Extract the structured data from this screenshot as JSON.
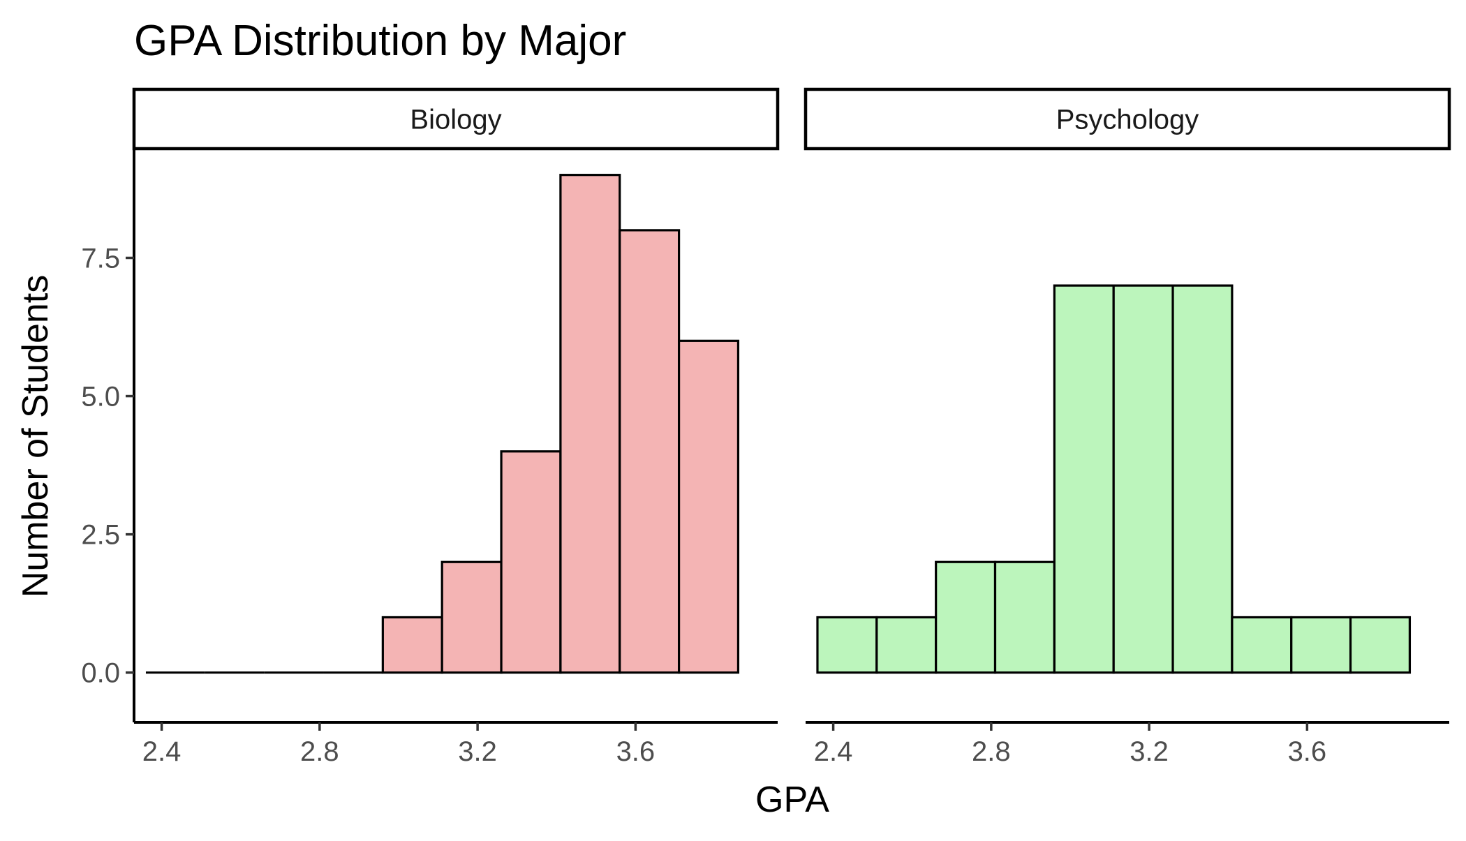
{
  "chart_data": {
    "type": "bar",
    "title": "GPA Distribution by Major",
    "xlabel": "GPA",
    "ylabel": "Number of Students",
    "xlim": [
      2.33,
      3.96
    ],
    "ylim": [
      -0.9,
      9.45
    ],
    "x_ticks": [
      {
        "value": 2.4,
        "label": "2.4"
      },
      {
        "value": 2.8,
        "label": "2.8"
      },
      {
        "value": 3.2,
        "label": "3.2"
      },
      {
        "value": 3.6,
        "label": "3.6"
      }
    ],
    "y_ticks": [
      {
        "value": 0,
        "label": "0.0"
      },
      {
        "value": 2.5,
        "label": "2.5"
      },
      {
        "value": 5,
        "label": "5.0"
      },
      {
        "value": 7.5,
        "label": "7.5"
      }
    ],
    "grid": false,
    "legend": "none",
    "bin_width": 0.15,
    "bin_starts": [
      2.36,
      2.51,
      2.66,
      2.81,
      2.96,
      3.11,
      3.26,
      3.41,
      3.56,
      3.71
    ],
    "series": [
      {
        "name": "Biology",
        "color": "#F4B4B4",
        "counts": [
          0,
          0,
          0,
          0,
          1,
          2,
          4,
          9,
          8,
          6
        ]
      },
      {
        "name": "Psychology",
        "color": "#BCF5BC",
        "counts": [
          1,
          1,
          2,
          2,
          7,
          7,
          7,
          1,
          1,
          1
        ]
      }
    ]
  }
}
